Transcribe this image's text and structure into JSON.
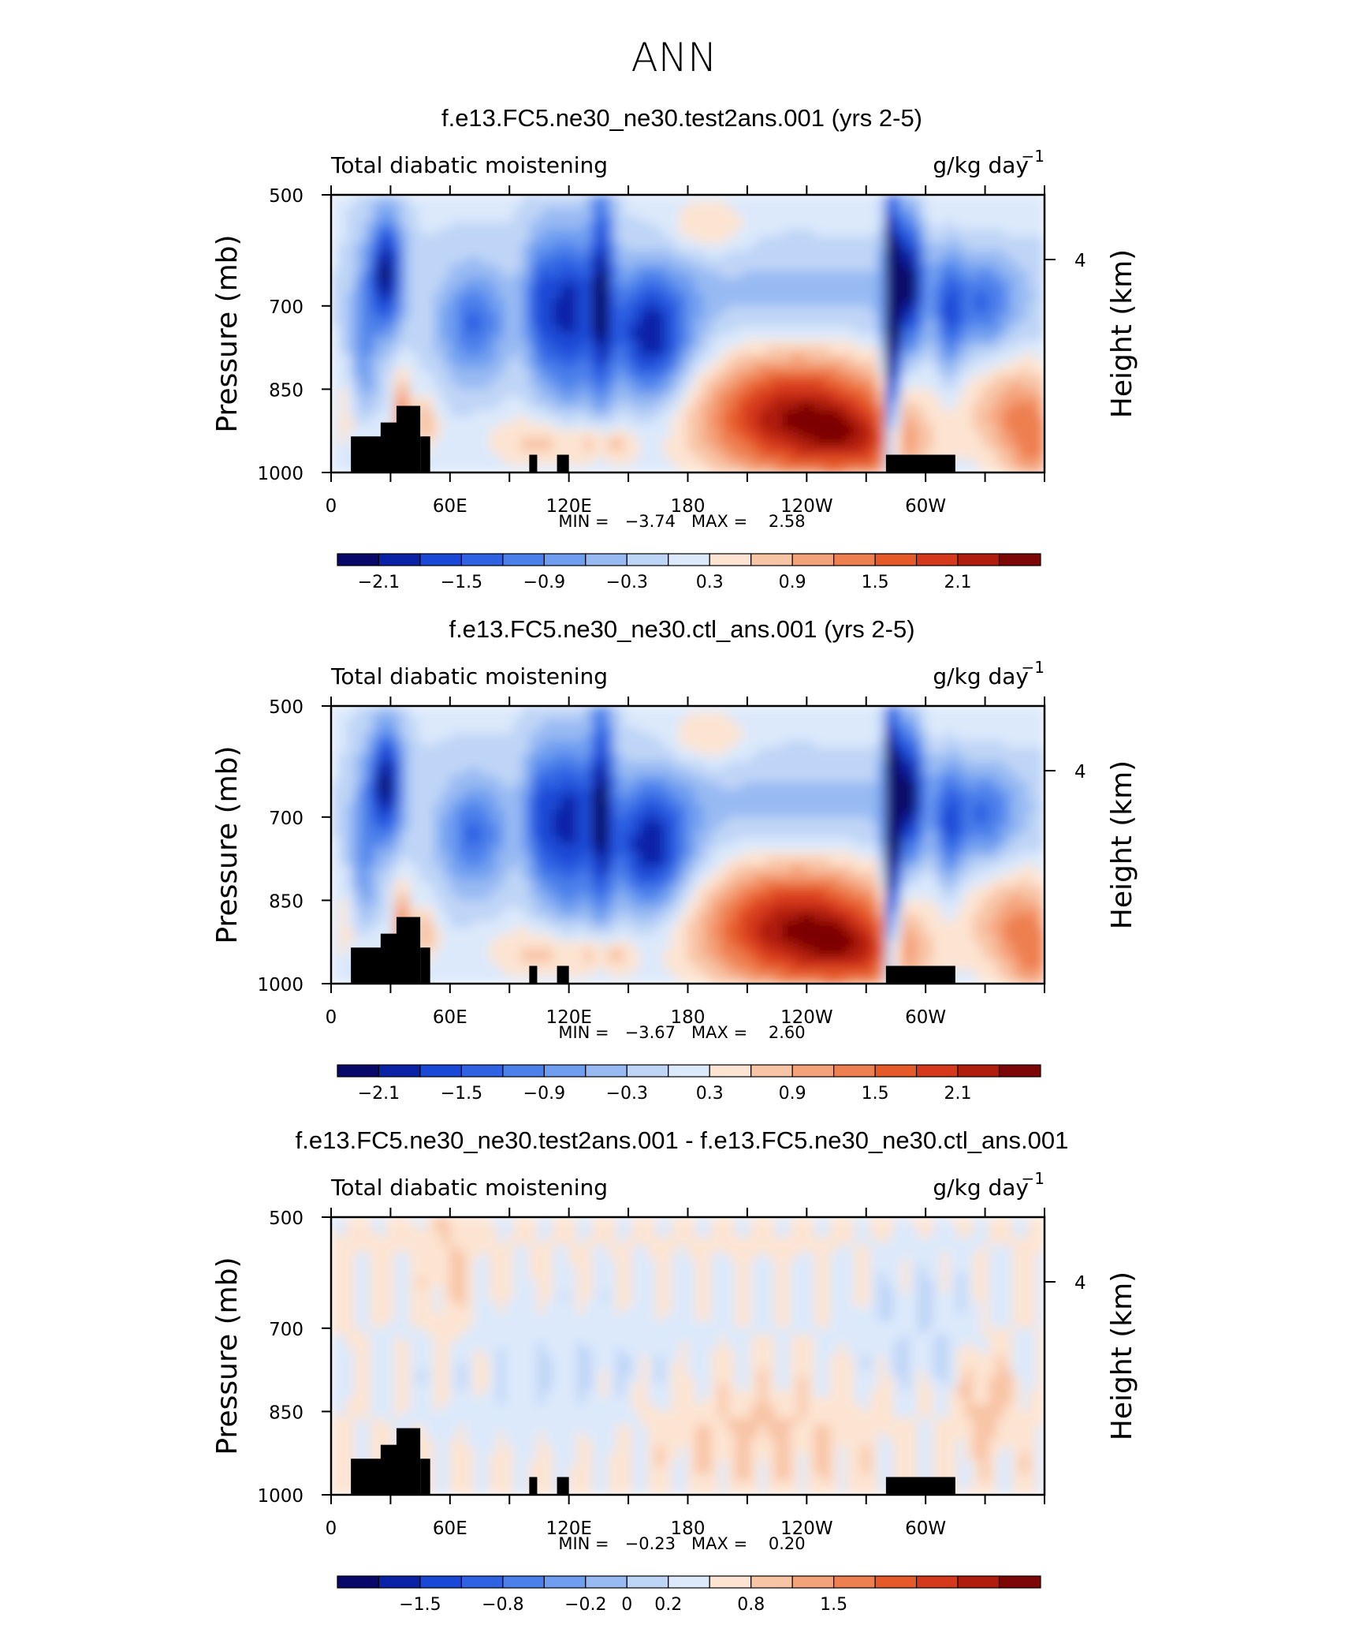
{
  "figure": {
    "title": "ANN"
  },
  "chart_data": [
    {
      "type": "heatmap",
      "title": "f.e13.FC5.ne30_ne30.test2ans.001 (yrs 2-5)",
      "left_string": "Total diabatic moistening",
      "units": "g/kg day",
      "units_exponent": "−1",
      "ylabel": "Pressure (mb)",
      "ylabel_right": "Height (km)",
      "y_ticks": [
        "500",
        "700",
        "850",
        "1000"
      ],
      "y_tick_values": [
        500,
        700,
        850,
        1000
      ],
      "y_right_ticks": [
        "4"
      ],
      "x_ticks": [
        "0",
        "60E",
        "120E",
        "180",
        "120W",
        "60W"
      ],
      "x_tick_values": [
        0,
        60,
        120,
        180,
        240,
        300
      ],
      "xlim": [
        0,
        360
      ],
      "ylim": [
        1000,
        500
      ],
      "stats_label": "MIN =   −3.74   MAX =    2.58",
      "min": -3.74,
      "max": 2.58,
      "colorbar_labels": [
        "−2.1",
        "−1.5",
        "−0.9",
        "−0.3",
        "0.3",
        "0.9",
        "1.5",
        "2.1"
      ],
      "colorbar_levels": [
        -2.4,
        -2.1,
        -1.8,
        -1.5,
        -1.2,
        -0.9,
        -0.6,
        -0.3,
        0,
        0.3,
        0.6,
        0.9,
        1.2,
        1.5,
        1.8,
        2.1,
        2.4
      ],
      "scale": 1.0
    },
    {
      "type": "heatmap",
      "title": "f.e13.FC5.ne30_ne30.ctl_ans.001 (yrs 2-5)",
      "left_string": "Total diabatic moistening",
      "units": "g/kg day",
      "units_exponent": "−1",
      "ylabel": "Pressure (mb)",
      "ylabel_right": "Height (km)",
      "y_ticks": [
        "500",
        "700",
        "850",
        "1000"
      ],
      "y_tick_values": [
        500,
        700,
        850,
        1000
      ],
      "y_right_ticks": [
        "4"
      ],
      "x_ticks": [
        "0",
        "60E",
        "120E",
        "180",
        "120W",
        "60W"
      ],
      "x_tick_values": [
        0,
        60,
        120,
        180,
        240,
        300
      ],
      "xlim": [
        0,
        360
      ],
      "ylim": [
        1000,
        500
      ],
      "stats_label": "MIN =   −3.67   MAX =    2.60",
      "min": -3.67,
      "max": 2.6,
      "colorbar_labels": [
        "−2.1",
        "−1.5",
        "−0.9",
        "−0.3",
        "0.3",
        "0.9",
        "1.5",
        "2.1"
      ],
      "colorbar_levels": [
        -2.4,
        -2.1,
        -1.8,
        -1.5,
        -1.2,
        -0.9,
        -0.6,
        -0.3,
        0,
        0.3,
        0.6,
        0.9,
        1.2,
        1.5,
        1.8,
        2.1,
        2.4
      ],
      "scale": 1.0
    },
    {
      "type": "heatmap",
      "title": "f.e13.FC5.ne30_ne30.test2ans.001 - f.e13.FC5.ne30_ne30.ctl_ans.001",
      "left_string": "Total diabatic moistening",
      "units": "g/kg day",
      "units_exponent": "−1",
      "ylabel": "Pressure (mb)",
      "ylabel_right": "Height (km)",
      "y_ticks": [
        "500",
        "700",
        "850",
        "1000"
      ],
      "y_tick_values": [
        500,
        700,
        850,
        1000
      ],
      "y_right_ticks": [
        "4"
      ],
      "x_ticks": [
        "0",
        "60E",
        "120E",
        "180",
        "120W",
        "60W"
      ],
      "x_tick_values": [
        0,
        60,
        120,
        180,
        240,
        300
      ],
      "xlim": [
        0,
        360
      ],
      "ylim": [
        1000,
        500
      ],
      "stats_label": "MIN =   −0.23   MAX =    0.20",
      "min": -0.23,
      "max": 0.2,
      "colorbar_labels": [
        "−1.5",
        "−0.8",
        "−0.2",
        "0",
        "0.2",
        "0.8",
        "1.5"
      ],
      "colorbar_label_boundaries": [
        2,
        4,
        6,
        7,
        8,
        10,
        12
      ],
      "colorbar_levels": [
        -3,
        -2,
        -1.5,
        -1,
        -0.8,
        -0.5,
        -0.2,
        -0.1,
        0,
        0.1,
        0.2,
        0.5,
        0.8,
        1,
        1.5,
        2,
        3
      ],
      "scale": 0.07
    }
  ],
  "colormap": [
    "#08086b",
    "#0a22a8",
    "#1a48d6",
    "#2f62e3",
    "#4b7fea",
    "#6f9ef0",
    "#98baf3",
    "#bfd5f7",
    "#dce9fb",
    "#fde4d2",
    "#f8c4a6",
    "#f4a27a",
    "#ee7f50",
    "#e65a2a",
    "#d5381a",
    "#b01d0c",
    "#7d0606"
  ],
  "topography_color": "#000000"
}
